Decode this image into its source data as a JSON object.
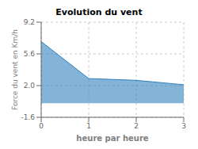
{
  "chart_data": {
    "type": "area",
    "title": "Evolution du vent",
    "xlabel": "heure par heure",
    "ylabel": "Force du vent en Km/h",
    "x": [
      0,
      1,
      2,
      3
    ],
    "values": [
      7.0,
      2.8,
      2.6,
      2.1
    ],
    "xlim": [
      0,
      3
    ],
    "ylim": [
      -1.6,
      9.2
    ],
    "xticks": [
      0,
      1,
      2,
      3
    ],
    "yticks": [
      -1.6,
      {
        "value": 2.0,
        "label": "2.0"
      },
      5.6,
      9.2
    ],
    "grid": true
  }
}
